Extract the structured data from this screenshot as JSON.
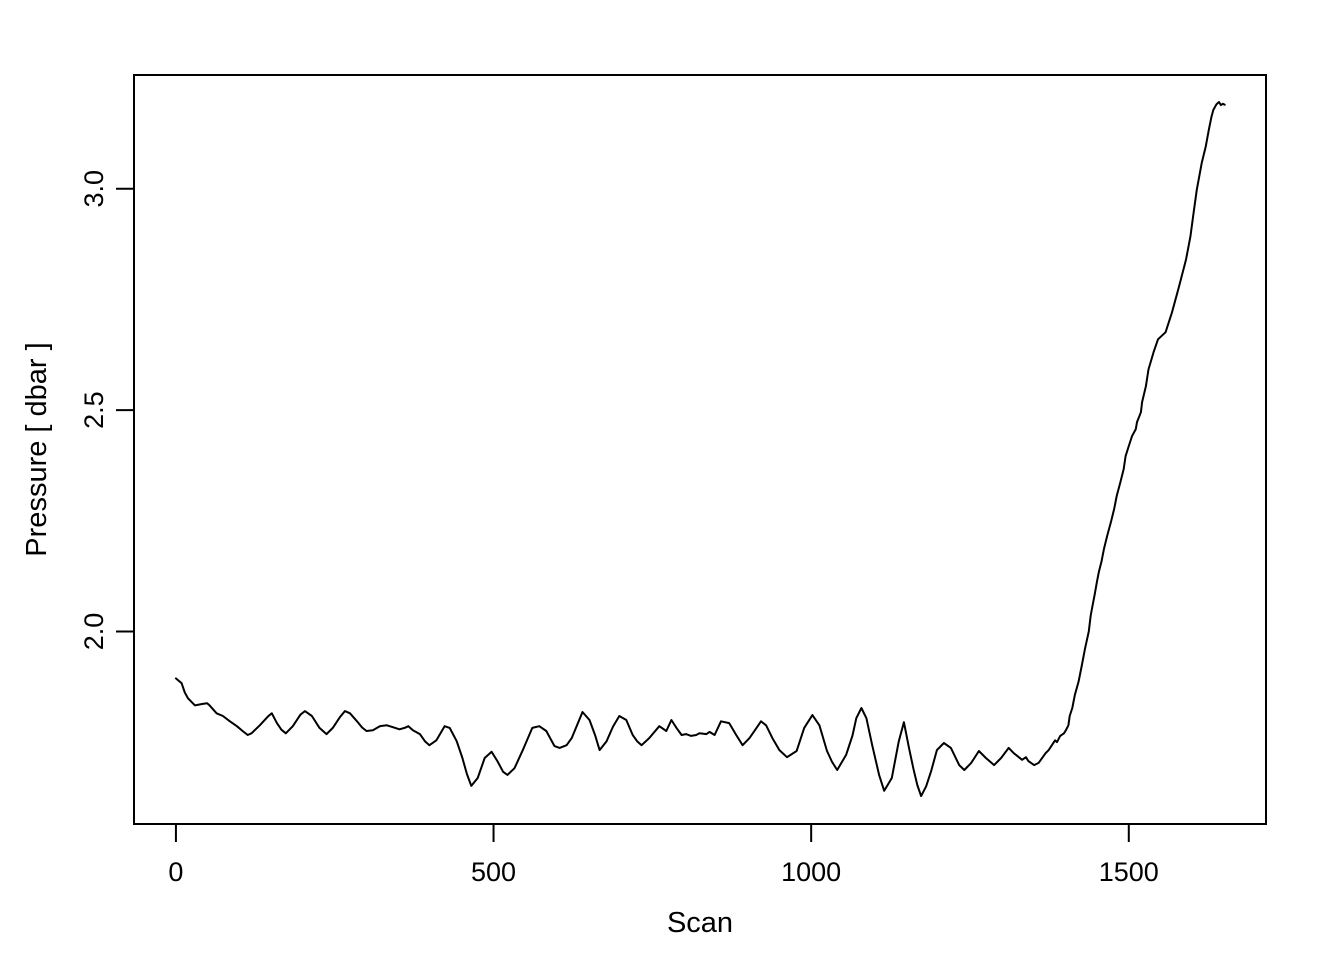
{
  "figure": {
    "background": "#ffffff",
    "foreground": "#000000"
  },
  "chart_data": {
    "type": "line",
    "title": "",
    "xlabel": "Scan",
    "ylabel": "Pressure [ dbar ]",
    "x_ticks": [
      0,
      500,
      1000,
      1500
    ],
    "x_tick_labels": [
      "0",
      "500",
      "1000",
      "1500"
    ],
    "y_ticks": [
      2.0,
      2.5,
      3.0
    ],
    "y_tick_labels": [
      "2.0",
      "2.5",
      "3.0"
    ],
    "xlim": [
      -66,
      1716
    ],
    "ylim": [
      1.565,
      3.257
    ],
    "grid": false,
    "legend": false,
    "line_color": "#000000",
    "line_width": 2,
    "series": [
      {
        "name": "Pressure",
        "color": "#000000",
        "points": [
          [
            0,
            1.894
          ],
          [
            9,
            1.883
          ],
          [
            14,
            1.862
          ],
          [
            19,
            1.849
          ],
          [
            30,
            1.833
          ],
          [
            41,
            1.836
          ],
          [
            49,
            1.838
          ],
          [
            53,
            1.833
          ],
          [
            64,
            1.815
          ],
          [
            74,
            1.809
          ],
          [
            85,
            1.797
          ],
          [
            96,
            1.786
          ],
          [
            105,
            1.775
          ],
          [
            113,
            1.766
          ],
          [
            119,
            1.77
          ],
          [
            132,
            1.788
          ],
          [
            145,
            1.808
          ],
          [
            151,
            1.815
          ],
          [
            159,
            1.793
          ],
          [
            166,
            1.778
          ],
          [
            173,
            1.77
          ],
          [
            184,
            1.786
          ],
          [
            196,
            1.812
          ],
          [
            203,
            1.82
          ],
          [
            214,
            1.809
          ],
          [
            226,
            1.782
          ],
          [
            237,
            1.768
          ],
          [
            247,
            1.782
          ],
          [
            258,
            1.806
          ],
          [
            266,
            1.82
          ],
          [
            274,
            1.815
          ],
          [
            285,
            1.797
          ],
          [
            293,
            1.783
          ],
          [
            300,
            1.775
          ],
          [
            310,
            1.777
          ],
          [
            321,
            1.786
          ],
          [
            332,
            1.788
          ],
          [
            341,
            1.784
          ],
          [
            352,
            1.779
          ],
          [
            360,
            1.782
          ],
          [
            366,
            1.786
          ],
          [
            373,
            1.777
          ],
          [
            384,
            1.768
          ],
          [
            392,
            1.752
          ],
          [
            399,
            1.743
          ],
          [
            410,
            1.754
          ],
          [
            423,
            1.786
          ],
          [
            431,
            1.782
          ],
          [
            442,
            1.752
          ],
          [
            451,
            1.714
          ],
          [
            458,
            1.678
          ],
          [
            465,
            1.651
          ],
          [
            475,
            1.669
          ],
          [
            486,
            1.714
          ],
          [
            497,
            1.728
          ],
          [
            506,
            1.707
          ],
          [
            515,
            1.683
          ],
          [
            522,
            1.676
          ],
          [
            533,
            1.691
          ],
          [
            546,
            1.732
          ],
          [
            561,
            1.782
          ],
          [
            572,
            1.786
          ],
          [
            583,
            1.775
          ],
          [
            596,
            1.741
          ],
          [
            604,
            1.737
          ],
          [
            615,
            1.743
          ],
          [
            623,
            1.759
          ],
          [
            632,
            1.79
          ],
          [
            640,
            1.818
          ],
          [
            651,
            1.8
          ],
          [
            660,
            1.765
          ],
          [
            667,
            1.732
          ],
          [
            678,
            1.752
          ],
          [
            688,
            1.785
          ],
          [
            698,
            1.809
          ],
          [
            709,
            1.8
          ],
          [
            719,
            1.766
          ],
          [
            726,
            1.752
          ],
          [
            733,
            1.743
          ],
          [
            745,
            1.759
          ],
          [
            761,
            1.786
          ],
          [
            772,
            1.775
          ],
          [
            780,
            1.8
          ],
          [
            788,
            1.782
          ],
          [
            796,
            1.766
          ],
          [
            803,
            1.768
          ],
          [
            811,
            1.764
          ],
          [
            819,
            1.766
          ],
          [
            824,
            1.77
          ],
          [
            835,
            1.768
          ],
          [
            840,
            1.773
          ],
          [
            848,
            1.766
          ],
          [
            858,
            1.797
          ],
          [
            871,
            1.793
          ],
          [
            882,
            1.766
          ],
          [
            892,
            1.743
          ],
          [
            903,
            1.759
          ],
          [
            913,
            1.78
          ],
          [
            921,
            1.797
          ],
          [
            929,
            1.788
          ],
          [
            939,
            1.759
          ],
          [
            950,
            1.732
          ],
          [
            962,
            1.716
          ],
          [
            977,
            1.73
          ],
          [
            989,
            1.782
          ],
          [
            1002,
            1.811
          ],
          [
            1013,
            1.788
          ],
          [
            1025,
            1.73
          ],
          [
            1033,
            1.705
          ],
          [
            1041,
            1.687
          ],
          [
            1055,
            1.721
          ],
          [
            1065,
            1.765
          ],
          [
            1071,
            1.804
          ],
          [
            1079,
            1.827
          ],
          [
            1087,
            1.804
          ],
          [
            1096,
            1.743
          ],
          [
            1107,
            1.676
          ],
          [
            1115,
            1.64
          ],
          [
            1127,
            1.669
          ],
          [
            1138,
            1.752
          ],
          [
            1146,
            1.795
          ],
          [
            1154,
            1.737
          ],
          [
            1161,
            1.69
          ],
          [
            1167,
            1.653
          ],
          [
            1173,
            1.628
          ],
          [
            1181,
            1.65
          ],
          [
            1189,
            1.685
          ],
          [
            1198,
            1.732
          ],
          [
            1209,
            1.748
          ],
          [
            1220,
            1.737
          ],
          [
            1233,
            1.698
          ],
          [
            1241,
            1.687
          ],
          [
            1252,
            1.703
          ],
          [
            1264,
            1.73
          ],
          [
            1275,
            1.714
          ],
          [
            1288,
            1.698
          ],
          [
            1299,
            1.714
          ],
          [
            1311,
            1.737
          ],
          [
            1319,
            1.725
          ],
          [
            1332,
            1.71
          ],
          [
            1338,
            1.716
          ],
          [
            1342,
            1.707
          ],
          [
            1351,
            1.698
          ],
          [
            1358,
            1.703
          ],
          [
            1369,
            1.725
          ],
          [
            1374,
            1.732
          ],
          [
            1379,
            1.743
          ],
          [
            1384,
            1.754
          ],
          [
            1387,
            1.75
          ],
          [
            1392,
            1.764
          ],
          [
            1398,
            1.77
          ],
          [
            1401,
            1.777
          ],
          [
            1405,
            1.788
          ],
          [
            1407,
            1.809
          ],
          [
            1411,
            1.827
          ],
          [
            1415,
            1.856
          ],
          [
            1421,
            1.887
          ],
          [
            1426,
            1.923
          ],
          [
            1431,
            1.961
          ],
          [
            1437,
            2.0
          ],
          [
            1440,
            2.036
          ],
          [
            1443,
            2.059
          ],
          [
            1446,
            2.081
          ],
          [
            1450,
            2.113
          ],
          [
            1453,
            2.135
          ],
          [
            1457,
            2.158
          ],
          [
            1461,
            2.187
          ],
          [
            1466,
            2.216
          ],
          [
            1472,
            2.248
          ],
          [
            1477,
            2.277
          ],
          [
            1481,
            2.306
          ],
          [
            1487,
            2.338
          ],
          [
            1492,
            2.367
          ],
          [
            1495,
            2.396
          ],
          [
            1500,
            2.419
          ],
          [
            1505,
            2.441
          ],
          [
            1511,
            2.457
          ],
          [
            1513,
            2.473
          ],
          [
            1519,
            2.495
          ],
          [
            1521,
            2.518
          ],
          [
            1527,
            2.554
          ],
          [
            1531,
            2.592
          ],
          [
            1539,
            2.631
          ],
          [
            1546,
            2.66
          ],
          [
            1558,
            2.676
          ],
          [
            1568,
            2.721
          ],
          [
            1579,
            2.779
          ],
          [
            1590,
            2.84
          ],
          [
            1597,
            2.892
          ],
          [
            1602,
            2.946
          ],
          [
            1607,
            2.998
          ],
          [
            1615,
            3.059
          ],
          [
            1621,
            3.095
          ],
          [
            1626,
            3.133
          ],
          [
            1630,
            3.162
          ],
          [
            1633,
            3.178
          ],
          [
            1638,
            3.191
          ],
          [
            1642,
            3.196
          ],
          [
            1645,
            3.189
          ],
          [
            1648,
            3.192
          ],
          [
            1651,
            3.19
          ]
        ]
      }
    ]
  }
}
